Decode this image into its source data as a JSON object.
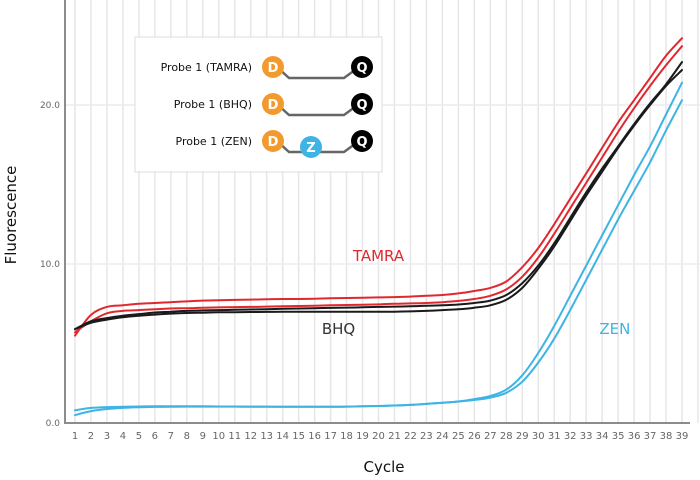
{
  "chart_data": {
    "type": "line",
    "title": "",
    "xlabel": "Cycle",
    "ylabel": "Fluorescence",
    "xlim": [
      1,
      39
    ],
    "ylim": [
      0,
      25
    ],
    "grid": true,
    "x": [
      1,
      2,
      3,
      4,
      5,
      6,
      7,
      8,
      9,
      10,
      11,
      12,
      13,
      14,
      15,
      16,
      17,
      18,
      19,
      20,
      21,
      22,
      23,
      24,
      25,
      26,
      27,
      28,
      29,
      30,
      31,
      32,
      33,
      34,
      35,
      36,
      37,
      38,
      39
    ],
    "x_tick_labels": [
      "1",
      "2",
      "3",
      "4",
      "5",
      "6",
      "7",
      "8",
      "9",
      "10",
      "11",
      "12",
      "13",
      "14",
      "15",
      "16",
      "17",
      "18",
      "19",
      "20",
      "21",
      "22",
      "23",
      "24",
      "25",
      "26",
      "27",
      "28",
      "29",
      "30",
      "31",
      "32",
      "33",
      "34",
      "35",
      "36",
      "37",
      "38",
      "39"
    ],
    "y_ticks": [
      0,
      10,
      20
    ],
    "y_tick_labels": [
      "0.0",
      "10.0",
      "20.0"
    ],
    "series": [
      {
        "name": "TAMRA replicate 1",
        "group": "TAMRA",
        "color": "#e0282e",
        "values": [
          5.5,
          6.8,
          7.3,
          7.4,
          7.5,
          7.55,
          7.6,
          7.65,
          7.7,
          7.72,
          7.74,
          7.76,
          7.78,
          7.8,
          7.8,
          7.82,
          7.84,
          7.86,
          7.88,
          7.9,
          7.92,
          7.95,
          8.0,
          8.05,
          8.15,
          8.3,
          8.5,
          8.9,
          9.8,
          11.0,
          12.5,
          14.1,
          15.7,
          17.3,
          18.9,
          20.3,
          21.7,
          23.1,
          24.2
        ]
      },
      {
        "name": "TAMRA replicate 2",
        "group": "TAMRA",
        "color": "#e0282e",
        "values": [
          5.7,
          6.4,
          6.9,
          7.05,
          7.1,
          7.15,
          7.2,
          7.22,
          7.25,
          7.27,
          7.29,
          7.3,
          7.32,
          7.34,
          7.36,
          7.38,
          7.4,
          7.42,
          7.44,
          7.46,
          7.5,
          7.52,
          7.55,
          7.6,
          7.68,
          7.8,
          8.0,
          8.4,
          9.2,
          10.4,
          11.9,
          13.5,
          15.1,
          16.7,
          18.3,
          19.8,
          21.2,
          22.5,
          23.7
        ]
      },
      {
        "name": "BHQ replicate 1",
        "group": "BHQ",
        "color": "#1a1a1a",
        "values": [
          5.9,
          6.4,
          6.6,
          6.75,
          6.85,
          6.95,
          7.0,
          7.05,
          7.08,
          7.1,
          7.12,
          7.14,
          7.16,
          7.18,
          7.2,
          7.22,
          7.24,
          7.26,
          7.28,
          7.3,
          7.32,
          7.34,
          7.37,
          7.4,
          7.45,
          7.55,
          7.7,
          8.05,
          8.8,
          9.9,
          11.3,
          12.9,
          14.5,
          16.0,
          17.4,
          18.8,
          20.1,
          21.3,
          22.7
        ]
      },
      {
        "name": "BHQ replicate 2",
        "group": "BHQ",
        "color": "#1a1a1a",
        "values": [
          5.9,
          6.3,
          6.5,
          6.65,
          6.75,
          6.82,
          6.88,
          6.92,
          6.94,
          6.96,
          6.97,
          6.98,
          6.99,
          7.0,
          7.0,
          7.0,
          7.0,
          7.0,
          7.0,
          7.0,
          7.0,
          7.02,
          7.05,
          7.1,
          7.15,
          7.25,
          7.4,
          7.75,
          8.5,
          9.7,
          11.1,
          12.7,
          14.3,
          15.8,
          17.3,
          18.7,
          20.0,
          21.2,
          22.2
        ]
      },
      {
        "name": "ZEN replicate 1",
        "group": "ZEN",
        "color": "#3db4e5",
        "values": [
          0.8,
          0.95,
          1.0,
          1.02,
          1.04,
          1.05,
          1.05,
          1.05,
          1.05,
          1.04,
          1.04,
          1.03,
          1.03,
          1.02,
          1.02,
          1.02,
          1.02,
          1.03,
          1.05,
          1.07,
          1.1,
          1.14,
          1.2,
          1.27,
          1.35,
          1.5,
          1.7,
          2.1,
          3.0,
          4.4,
          6.1,
          8.0,
          9.9,
          11.8,
          13.7,
          15.6,
          17.4,
          19.4,
          21.4
        ]
      },
      {
        "name": "ZEN replicate 2",
        "group": "ZEN",
        "color": "#3db4e5",
        "values": [
          0.5,
          0.75,
          0.88,
          0.95,
          0.99,
          1.01,
          1.02,
          1.03,
          1.03,
          1.03,
          1.03,
          1.02,
          1.02,
          1.02,
          1.02,
          1.02,
          1.02,
          1.03,
          1.05,
          1.07,
          1.1,
          1.14,
          1.2,
          1.27,
          1.35,
          1.45,
          1.6,
          1.9,
          2.6,
          3.8,
          5.3,
          7.1,
          9.0,
          10.9,
          12.8,
          14.6,
          16.4,
          18.4,
          20.3
        ]
      }
    ],
    "annotations": [
      {
        "text": "TAMRA",
        "color": "#e0282e",
        "x": 20,
        "y": 10.2
      },
      {
        "text": "BHQ",
        "color": "#333333",
        "x": 17.5,
        "y": 5.6
      },
      {
        "text": "ZEN",
        "color": "#3db4e5",
        "x": 34.8,
        "y": 5.6
      }
    ],
    "legend": {
      "placement": "top-left",
      "entries": [
        {
          "label": "Probe 1 (TAMRA)",
          "donor": "D",
          "quencher": "Q",
          "internal": ""
        },
        {
          "label": "Probe 1 (BHQ)",
          "donor": "D",
          "quencher": "Q",
          "internal": ""
        },
        {
          "label": "Probe 1 (ZEN)",
          "donor": "D",
          "quencher": "Q",
          "internal": "Z"
        }
      ],
      "colors": {
        "donor": "#f39a2e",
        "quencher": "#000000",
        "internal": "#3db4e5",
        "linker": "#666666"
      }
    }
  }
}
